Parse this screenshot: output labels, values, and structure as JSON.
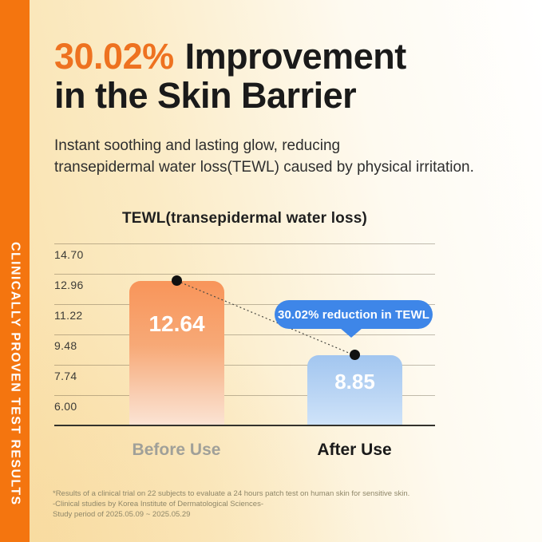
{
  "ribbon": {
    "label": "CLINICALLY PROVEN TEST RESULTS",
    "color": "#F4750F"
  },
  "header": {
    "highlight": "30.02%",
    "highlight_color": "#EE7220",
    "title_rest": "Improvement",
    "title_line2": "in the Skin Barrier",
    "subtitle_line1": "Instant soothing and lasting glow, reducing",
    "subtitle_line2": "transepidermal water loss(TEWL) caused by physical irritation."
  },
  "chart_data": {
    "type": "bar",
    "title": "TEWL(transepidermal water loss)",
    "categories": [
      "Before Use",
      "After Use"
    ],
    "values": [
      12.64,
      8.85
    ],
    "bar_value_labels": [
      "12.64",
      "8.85"
    ],
    "ytick_labels": [
      "14.70",
      "12.96",
      "11.22",
      "9.48",
      "7.74",
      "6.00"
    ],
    "yticks": [
      14.7,
      12.96,
      11.22,
      9.48,
      7.74,
      6.0
    ],
    "ylim": [
      4.26,
      14.7
    ],
    "grid": true,
    "legend": "none",
    "annotation": "30.02% reduction in TEWL",
    "annotation_color": "#3E86E8",
    "bar_colors": {
      "before_top": "#F8955A",
      "before_bottom": "#FBE3D3",
      "after_top": "#A2C6F0",
      "after_bottom": "#CFE3F9"
    },
    "connector": {
      "from_value": 12.64,
      "to_value": 8.85,
      "style": "dotted"
    }
  },
  "footnote": {
    "line1": "*Results of a clinical trial on 22 subjects to evaluate a 24 hours patch test on human skin for sensitive skin.",
    "line2": "-Clinical studies by Korea Institute of Dermatological Sciences-",
    "line3": "Study period of 2025.05.09 ~ 2025.05.29"
  }
}
